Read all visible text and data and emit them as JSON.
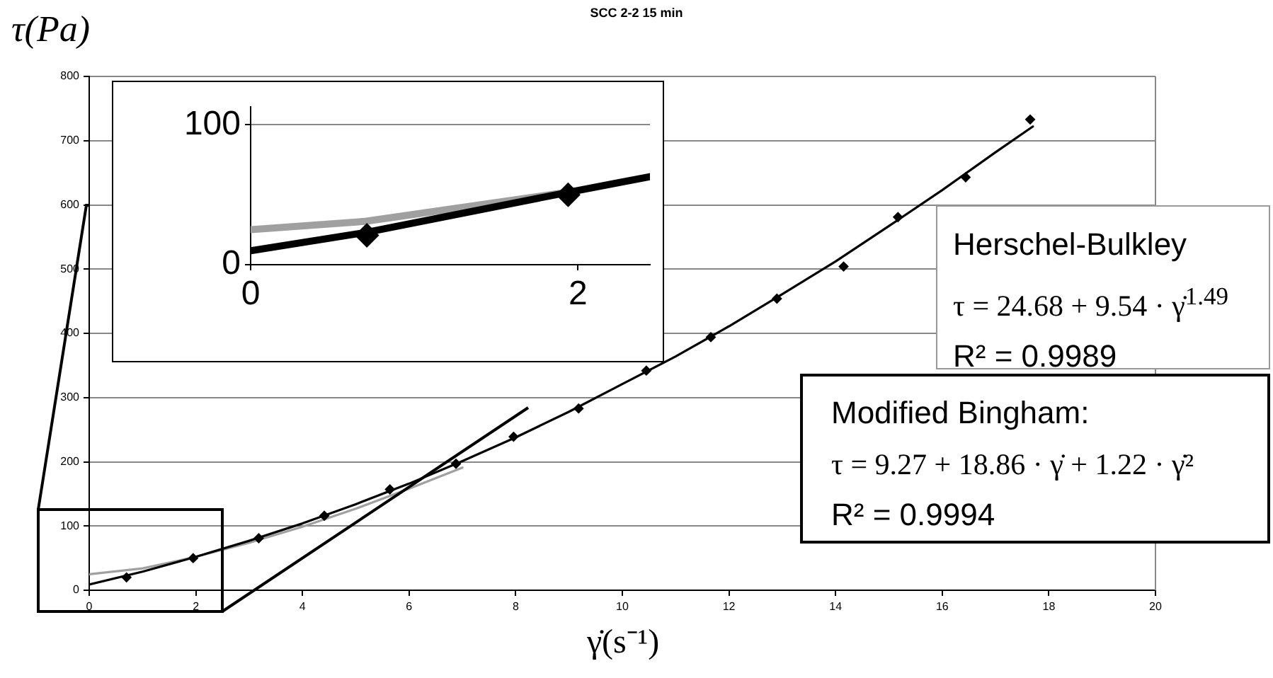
{
  "chart_data": [
    {
      "type": "scatter",
      "title": "SCC 2-2 15 min",
      "xlabel": "γ̇(s⁻¹)",
      "ylabel": "τ(Pa)",
      "xlim": [
        0,
        20
      ],
      "xticks": [
        0,
        2,
        4,
        6,
        8,
        10,
        12,
        14,
        16,
        18,
        20
      ],
      "ylim": [
        0,
        800
      ],
      "yticks": [
        0,
        100,
        200,
        300,
        400,
        500,
        600,
        700,
        800
      ],
      "grid": "y",
      "series": [
        {
          "type": "scatter",
          "marker": "diamond",
          "color": "#000000",
          "x": [
            0.7,
            1.95,
            3.18,
            4.41,
            5.64,
            6.88,
            7.96,
            9.18,
            10.45,
            11.66,
            12.9,
            14.15,
            15.17,
            16.44,
            17.65
          ],
          "values": [
            20,
            50,
            81,
            116,
            157,
            197,
            239,
            283,
            342,
            394,
            454,
            504,
            581,
            643,
            733
          ]
        },
        {
          "type": "line",
          "color": "#000000",
          "x": [
            0,
            1,
            2,
            3,
            4,
            5,
            6,
            7,
            8,
            9,
            10,
            11,
            12,
            13,
            14,
            15,
            16,
            17,
            17.7
          ],
          "values": [
            9,
            29,
            52,
            77,
            104,
            134,
            166,
            201,
            238,
            278,
            321,
            364,
            411,
            461,
            512,
            567,
            623,
            682,
            722
          ]
        },
        {
          "type": "line",
          "color": "#a0a0a0",
          "x": [
            0,
            1,
            2,
            3,
            4,
            5,
            6,
            7
          ],
          "values": [
            25,
            34,
            52,
            74,
            99,
            127,
            158,
            191
          ]
        }
      ],
      "annotations": [
        "Herschel-Bulkley",
        "τ = 24.68 + 9.54 · γ̇$^{1.49}$",
        "R² = 0.9989",
        "Modified Bingham:",
        "τ = 9.27 + 18.86 · γ̇ + 1.22 · γ̇²",
        "R² = 0.9994"
      ]
    },
    {
      "type": "scatter",
      "xlim": [
        0,
        2.44
      ],
      "xticks": [
        0,
        2
      ],
      "ylim": [
        0,
        113
      ],
      "yticks": [
        0,
        100
      ],
      "grid": "y",
      "series": [
        {
          "type": "scatter",
          "marker": "diamond",
          "color": "#000000",
          "x": [
            0.71,
            1.94
          ],
          "values": [
            21,
            50
          ]
        },
        {
          "type": "line",
          "color": "#000000",
          "x": [
            0,
            0.7,
            1.95,
            2.44
          ],
          "values": [
            10,
            23,
            52,
            63
          ]
        },
        {
          "type": "line",
          "color": "#a0a0a0",
          "x": [
            0,
            0.7,
            1.95
          ],
          "values": [
            25,
            31,
            52
          ]
        }
      ]
    }
  ]
}
